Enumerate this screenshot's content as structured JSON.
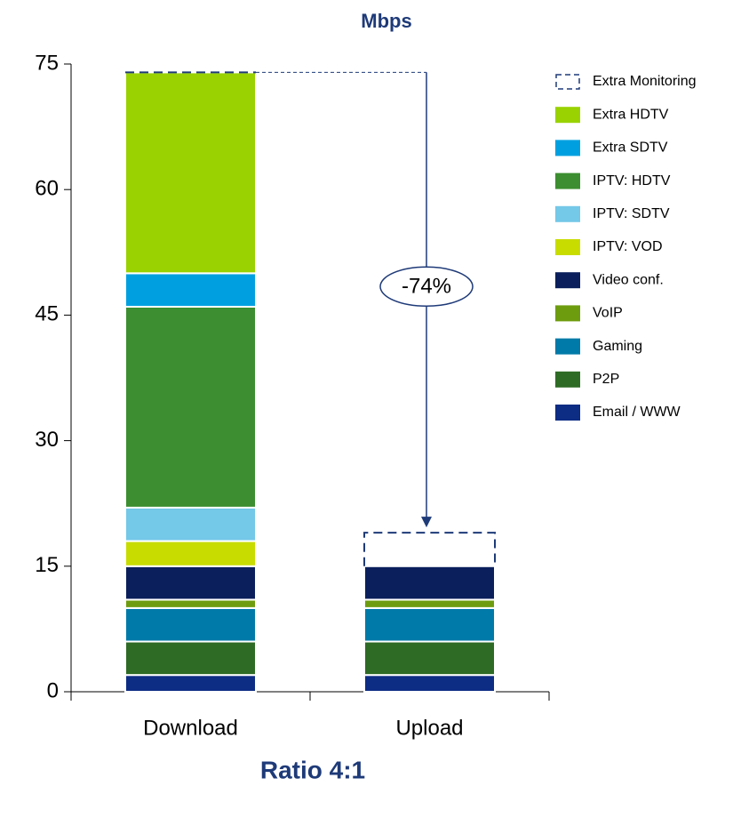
{
  "chart_data": {
    "type": "stacked_bar",
    "title": "Mbps",
    "footer": "Ratio 4:1",
    "annotation": "-74%",
    "categories": [
      "Download",
      "Upload"
    ],
    "ylim": [
      0,
      75
    ],
    "yticks": [
      0,
      15,
      30,
      45,
      60,
      75
    ],
    "series": [
      {
        "name": "Email / WWW",
        "color": "#0d2c84",
        "values": [
          2,
          2
        ]
      },
      {
        "name": "P2P",
        "color": "#2e6b25",
        "values": [
          4,
          4
        ]
      },
      {
        "name": "Gaming",
        "color": "#007aa8",
        "values": [
          4,
          4
        ]
      },
      {
        "name": "VoIP",
        "color": "#6e9c0f",
        "values": [
          1,
          1
        ]
      },
      {
        "name": "Video conf.",
        "color": "#0a1f5c",
        "values": [
          4,
          4
        ]
      },
      {
        "name": "IPTV: VOD",
        "color": "#c8dc00",
        "values": [
          3,
          0
        ]
      },
      {
        "name": "IPTV: SDTV",
        "color": "#74c8e8",
        "values": [
          4,
          0
        ]
      },
      {
        "name": "IPTV: HDTV",
        "color": "#3c8e30",
        "values": [
          24,
          0
        ]
      },
      {
        "name": "Extra SDTV",
        "color": "#00a0e0",
        "values": [
          4,
          0
        ]
      },
      {
        "name": "Extra HDTV",
        "color": "#99d200",
        "values": [
          24,
          0
        ]
      },
      {
        "name": "Extra Monitoring",
        "color": "#1e3a78",
        "dashed": true,
        "values": [
          0,
          4
        ]
      }
    ]
  }
}
